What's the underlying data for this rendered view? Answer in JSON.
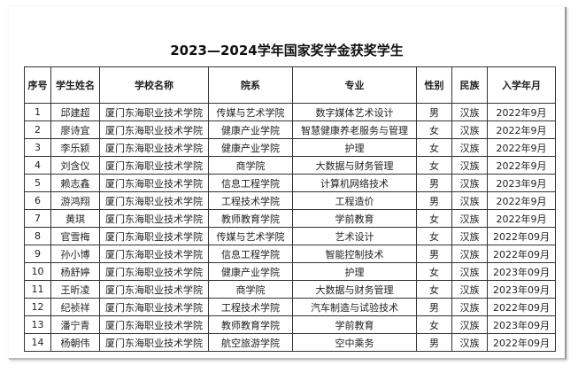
{
  "title": "2023—2024学年国家奖学金获奖学生",
  "headers": [
    "序号",
    "学生姓名",
    "学校名称",
    "院系",
    "专业",
    "性别",
    "民族",
    "入学年月"
  ],
  "rows": [
    [
      "1",
      "邱建超",
      "厦门东海职业技术学院",
      "传媒与艺术学院",
      "数字媒体艺术设计",
      "男",
      "汉族",
      "2022年9月"
    ],
    [
      "2",
      "廖诗宜",
      "厦门东海职业技术学院",
      "健康产业学院",
      "智慧健康养老服务与管理",
      "女",
      "汉族",
      "2022年9月"
    ],
    [
      "3",
      "李乐颍",
      "厦门东海职业技术学院",
      "健康产业学院",
      "护理",
      "女",
      "汉族",
      "2022年9月"
    ],
    [
      "4",
      "刘含仪",
      "厦门东海职业技术学院",
      "商学院",
      "大数据与财务管理",
      "女",
      "汉族",
      "2022年9月"
    ],
    [
      "5",
      "赖志鑫",
      "厦门东海职业技术学院",
      "信息工程学院",
      "计算机网络技术",
      "男",
      "汉族",
      "2023年9月"
    ],
    [
      "6",
      "游鸿翔",
      "厦门东海职业技术学院",
      "工程技术学院",
      "工程造价",
      "男",
      "汉族",
      "2022年9月"
    ],
    [
      "7",
      "黄琪",
      "厦门东海职业技术学院",
      "教师教育学院",
      "学前教育",
      "女",
      "汉族",
      "2022年9月"
    ],
    [
      "8",
      "官雪梅",
      "厦门东海职业技术学院",
      "传媒与艺术学院",
      "艺术设计",
      "女",
      "汉族",
      "2022年09月"
    ],
    [
      "9",
      "孙小博",
      "厦门东海职业技术学院",
      "信息工程学院",
      "智能控制技术",
      "男",
      "汉族",
      "2022年09月"
    ],
    [
      "10",
      "杨舒婷",
      "厦门东海职业技术学院",
      "健康产业学院",
      "护理",
      "女",
      "汉族",
      "2023年09月"
    ],
    [
      "11",
      "王昕凌",
      "厦门东海职业技术学院",
      "商学院",
      "大数据与财务管理",
      "女",
      "汉族",
      "2023年09月"
    ],
    [
      "12",
      "纪祯祥",
      "厦门东海职业技术学院",
      "工程技术学院",
      "汽车制造与试验技术",
      "男",
      "汉族",
      "2022年09月"
    ],
    [
      "13",
      "潘宁青",
      "厦门东海职业技术学院",
      "教师教育学院",
      "学前教育",
      "女",
      "汉族",
      "2023年09月"
    ],
    [
      "14",
      "杨朝伟",
      "厦门东海职业技术学院",
      "航空旅游学院",
      "空中乘务",
      "男",
      "汉族",
      "2022年09月"
    ]
  ]
}
